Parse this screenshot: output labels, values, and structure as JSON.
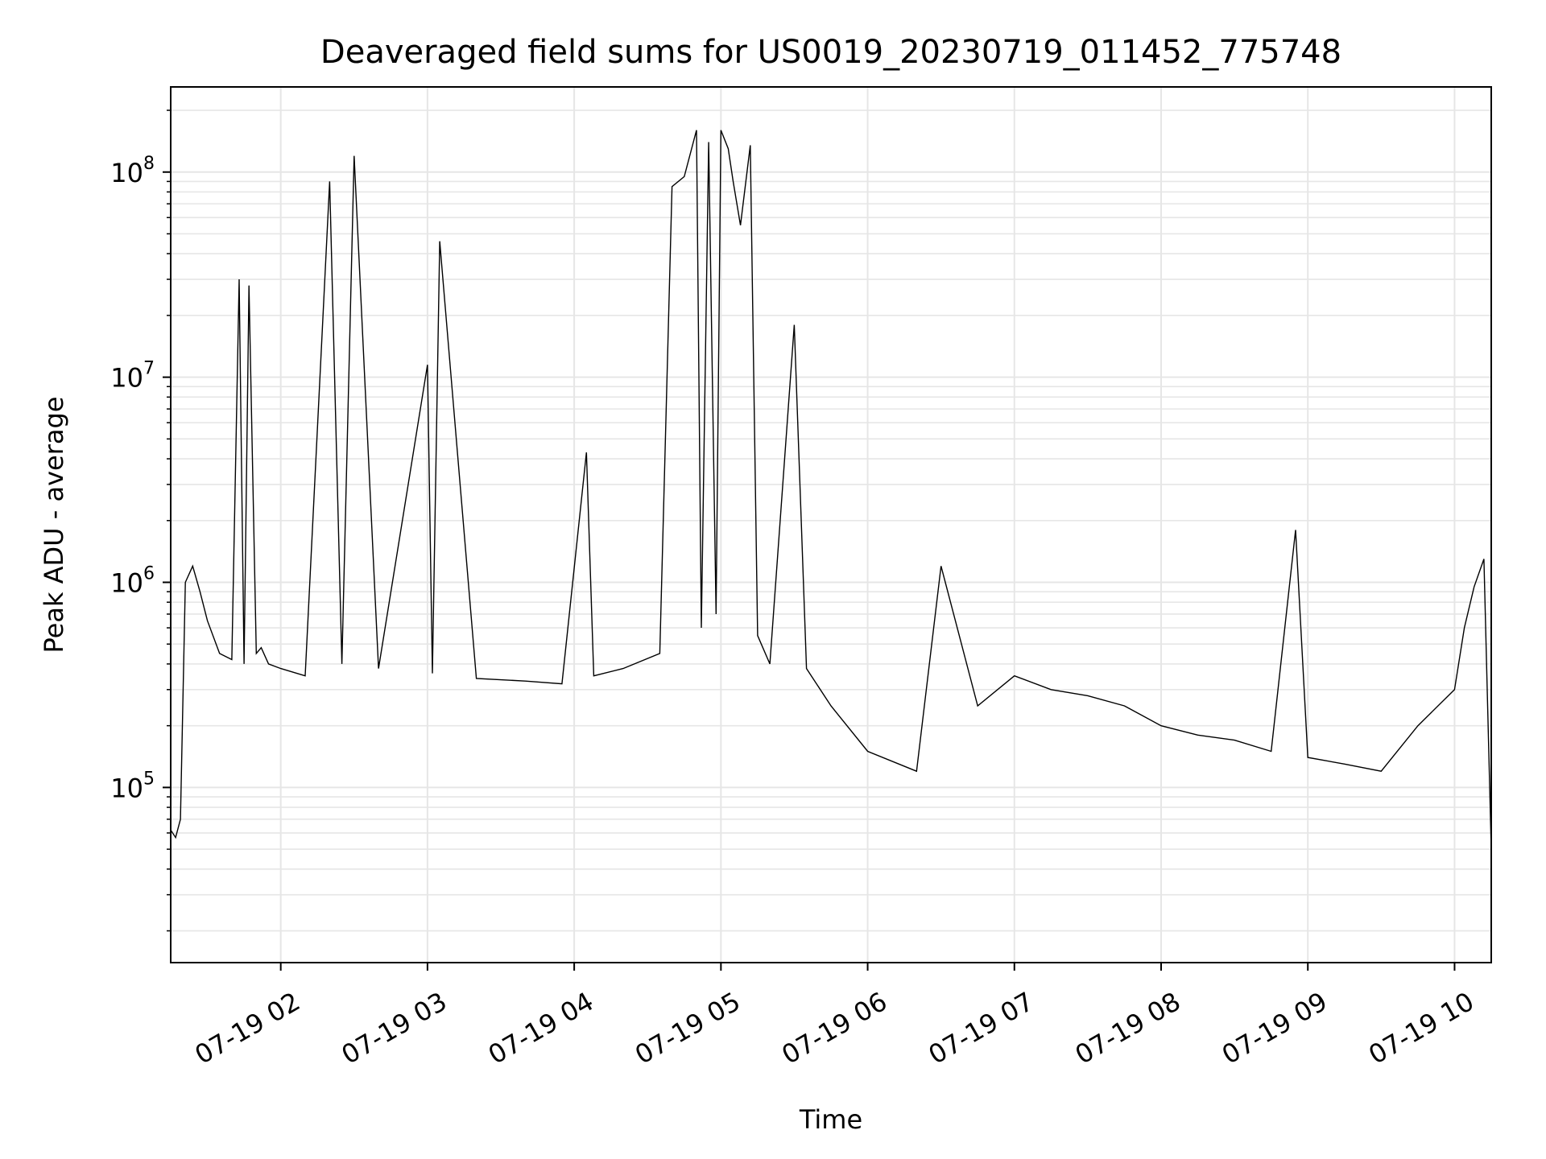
{
  "chart_data": {
    "type": "line",
    "title": "Deaveraged field sums for US0019_20230719_011452_775748",
    "xlabel": "Time",
    "ylabel": "Peak ADU - average",
    "y_scale": "log",
    "grid": true,
    "grid_minor": true,
    "series_color": "#000000",
    "grid_color": "#e6e6e6",
    "xlim": [
      "07-19 01:15",
      "07-19 10:15"
    ],
    "ylim": [
      14000,
      260000000
    ],
    "x_ticks": [
      "07-19 02",
      "07-19 03",
      "07-19 04",
      "07-19 05",
      "07-19 06",
      "07-19 07",
      "07-19 08",
      "07-19 09",
      "07-19 10"
    ],
    "y_ticks": [
      {
        "base": "10",
        "exp": "5",
        "value": 100000
      },
      {
        "base": "10",
        "exp": "6",
        "value": 1000000
      },
      {
        "base": "10",
        "exp": "7",
        "value": 10000000
      },
      {
        "base": "10",
        "exp": "8",
        "value": 100000000
      }
    ],
    "series": [
      {
        "x": [
          "07-19 01:15",
          "07-19 01:17",
          "07-19 01:19",
          "07-19 01:21",
          "07-19 01:24",
          "07-19 01:27",
          "07-19 01:30",
          "07-19 01:35",
          "07-19 01:40",
          "07-19 01:43",
          "07-19 01:45",
          "07-19 01:47",
          "07-19 01:50",
          "07-19 01:52",
          "07-19 01:55",
          "07-19 02:00",
          "07-19 02:10",
          "07-19 02:20",
          "07-19 02:25",
          "07-19 02:30",
          "07-19 02:40",
          "07-19 03:00",
          "07-19 03:02",
          "07-19 03:05",
          "07-19 03:20",
          "07-19 03:40",
          "07-19 03:55",
          "07-19 04:05",
          "07-19 04:08",
          "07-19 04:20",
          "07-19 04:35",
          "07-19 04:40",
          "07-19 04:45",
          "07-19 04:50",
          "07-19 04:52",
          "07-19 04:55",
          "07-19 04:58",
          "07-19 05:00",
          "07-19 05:03",
          "07-19 05:05",
          "07-19 05:08",
          "07-19 05:12",
          "07-19 05:15",
          "07-19 05:20",
          "07-19 05:30",
          "07-19 05:35",
          "07-19 05:45",
          "07-19 06:00",
          "07-19 06:20",
          "07-19 06:30",
          "07-19 06:45",
          "07-19 07:00",
          "07-19 07:15",
          "07-19 07:30",
          "07-19 07:45",
          "07-19 08:00",
          "07-19 08:15",
          "07-19 08:30",
          "07-19 08:45",
          "07-19 08:55",
          "07-19 09:00",
          "07-19 09:15",
          "07-19 09:30",
          "07-19 09:45",
          "07-19 10:00",
          "07-19 10:04",
          "07-19 10:08",
          "07-19 10:12",
          "07-19 10:15"
        ],
        "y": [
          62000,
          57000,
          70000,
          1000000,
          1200000,
          900000,
          650000,
          450000,
          420000,
          30000000,
          400000,
          28000000,
          450000,
          480000,
          400000,
          380000,
          350000,
          90000000,
          400000,
          120000000,
          380000,
          11500000,
          360000,
          46000000,
          340000,
          330000,
          320000,
          4300000,
          350000,
          380000,
          450000,
          85000000,
          95000000,
          160000000,
          600000,
          140000000,
          700000,
          160000000,
          130000000,
          90000000,
          55000000,
          135000000,
          550000,
          400000,
          18000000,
          380000,
          250000,
          150000,
          120000,
          1200000,
          250000,
          350000,
          300000,
          280000,
          250000,
          200000,
          180000,
          170000,
          150000,
          1800000,
          140000,
          130000,
          120000,
          200000,
          300000,
          600000,
          950000,
          1300000,
          50000
        ]
      }
    ]
  }
}
